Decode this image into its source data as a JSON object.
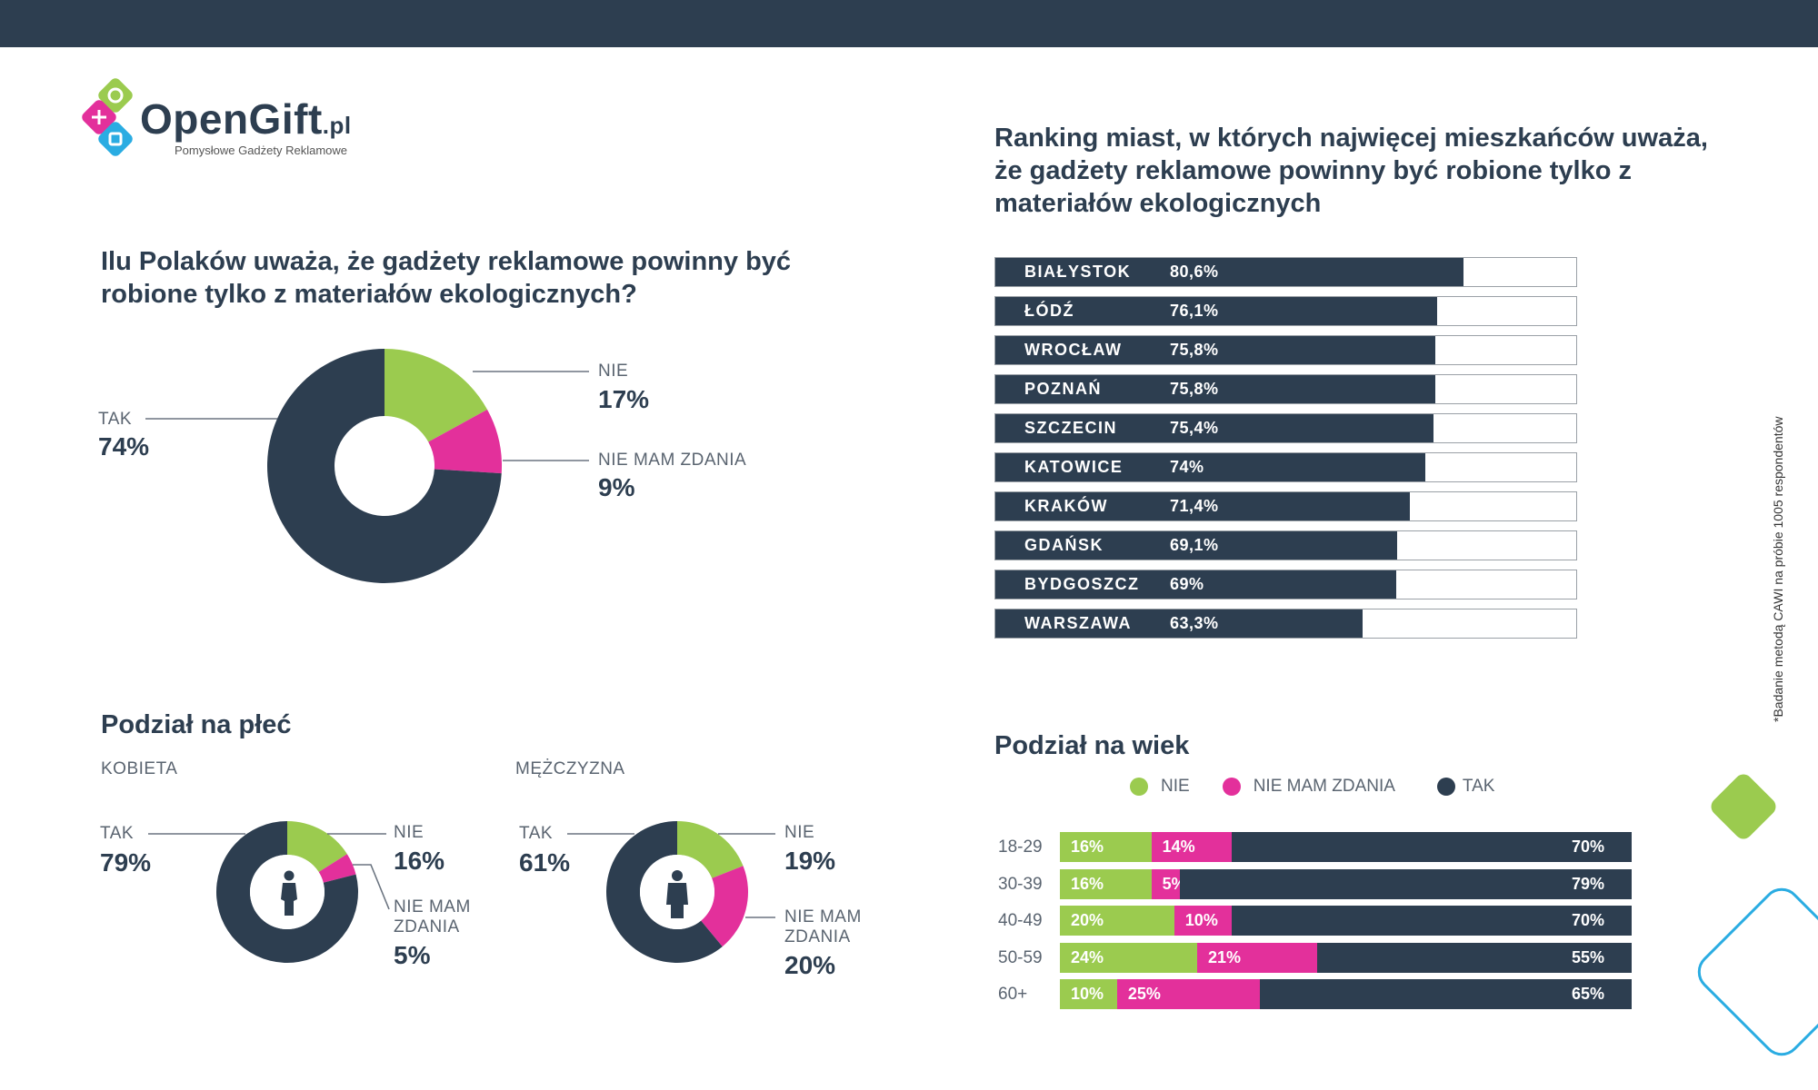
{
  "brand": {
    "name": "OpenGift",
    "tld": ".pl",
    "tagline": "Pomysłowe Gadżety Reklamowe"
  },
  "colors": {
    "dark": "#2d3e50",
    "green": "#9bcb4f",
    "pink": "#e3309b",
    "blue": "#2aace2"
  },
  "footnote": "*Badanie metodą CAWI na próbie 1005 respondentów",
  "chart_data": [
    {
      "type": "pie",
      "id": "overall",
      "title": "Ilu Polaków uważa, że gadżety reklamowe powinny być robione tylko z materiałów ekologicznych?",
      "slices": [
        {
          "label": "NIE",
          "value": 17,
          "display": "17%",
          "color": "#9bcb4f"
        },
        {
          "label": "NIE MAM ZDANIA",
          "value": 9,
          "display": "9%",
          "color": "#e3309b"
        },
        {
          "label": "TAK",
          "value": 74,
          "display": "74%",
          "color": "#2d3e50"
        }
      ]
    },
    {
      "type": "bar",
      "id": "cities",
      "title": "Ranking miast, w których najwięcej mieszkańców uważa, że gadżety reklamowe powinny być robione tylko z materiałów ekologicznych",
      "orientation": "horizontal",
      "xlim": [
        0,
        100
      ],
      "categories": [
        "BIAŁYSTOK",
        "ŁÓDŹ",
        "WROCŁAW",
        "POZNAŃ",
        "SZCZECIN",
        "KATOWICE",
        "KRAKÓW",
        "GDAŃSK",
        "BYDGOSZCZ",
        "WARSZAWA"
      ],
      "values": [
        80.6,
        76.1,
        75.8,
        75.8,
        75.4,
        74,
        71.4,
        69.1,
        69,
        63.3
      ],
      "labels": [
        "80,6%",
        "76,1%",
        "75,8%",
        "75,8%",
        "75,4%",
        "74%",
        "71,4%",
        "69,1%",
        "69%",
        "63,3%"
      ]
    },
    {
      "type": "pie",
      "id": "gender",
      "title": "Podział na płeć",
      "groups": [
        {
          "name": "KOBIETA",
          "icon": "female-person-icon",
          "slices": [
            {
              "label": "NIE",
              "value": 16,
              "display": "16%",
              "color": "#9bcb4f"
            },
            {
              "label": "NIE MAM ZDANIA",
              "value": 5,
              "display": "5%",
              "color": "#e3309b"
            },
            {
              "label": "TAK",
              "value": 79,
              "display": "79%",
              "color": "#2d3e50"
            }
          ]
        },
        {
          "name": "MĘŻCZYZNA",
          "icon": "male-person-icon",
          "slices": [
            {
              "label": "NIE",
              "value": 19,
              "display": "19%",
              "color": "#9bcb4f"
            },
            {
              "label": "NIE MAM ZDANIA",
              "value": 20,
              "display": "20%",
              "color": "#e3309b"
            },
            {
              "label": "TAK",
              "value": 61,
              "display": "61%",
              "color": "#2d3e50"
            }
          ]
        }
      ]
    },
    {
      "type": "bar",
      "id": "age",
      "stacked": true,
      "orientation": "horizontal",
      "title": "Podział na wiek",
      "legend": [
        "NIE",
        "NIE MAM ZDANIA",
        "TAK"
      ],
      "legend_position": "top",
      "categories": [
        "18-29",
        "30-39",
        "40-49",
        "50-59",
        "60+"
      ],
      "series": [
        {
          "name": "NIE",
          "color": "#9bcb4f",
          "values": [
            16,
            16,
            20,
            24,
            10
          ]
        },
        {
          "name": "NIE MAM ZDANIA",
          "color": "#e3309b",
          "values": [
            14,
            5,
            10,
            21,
            25
          ]
        },
        {
          "name": "TAK",
          "color": "#2d3e50",
          "values": [
            70,
            79,
            70,
            55,
            65
          ]
        }
      ]
    }
  ]
}
